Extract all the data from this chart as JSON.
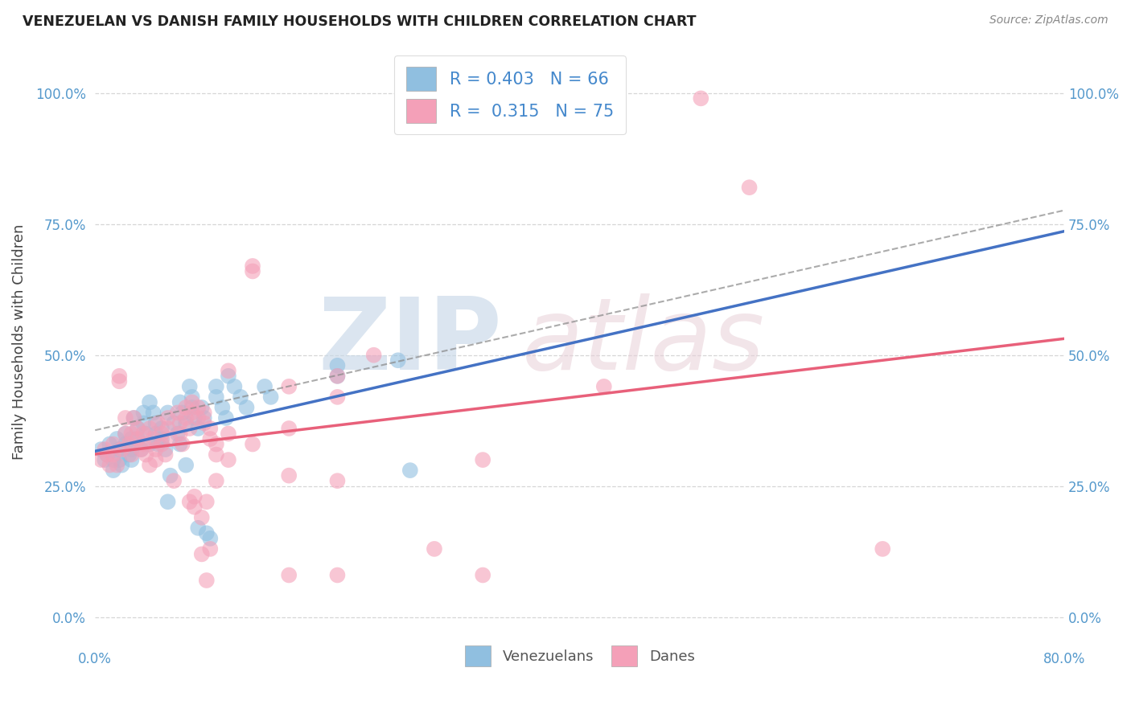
{
  "title": "VENEZUELAN VS DANISH FAMILY HOUSEHOLDS WITH CHILDREN CORRELATION CHART",
  "source": "Source: ZipAtlas.com",
  "ylabel": "Family Households with Children",
  "ytick_labels": [
    "0.0%",
    "25.0%",
    "50.0%",
    "75.0%",
    "100.0%"
  ],
  "watermark_zip": "ZIP",
  "watermark_atlas": "atlas",
  "venezuelan_color": "#90bfe0",
  "danish_color": "#f4a0b8",
  "venezuelan_line_color": "#4472c4",
  "danish_line_color": "#e8607a",
  "venezuelan_scatter": [
    [
      0.005,
      0.32
    ],
    [
      0.008,
      0.3
    ],
    [
      0.01,
      0.31
    ],
    [
      0.012,
      0.33
    ],
    [
      0.015,
      0.3
    ],
    [
      0.015,
      0.28
    ],
    [
      0.018,
      0.34
    ],
    [
      0.02,
      0.32
    ],
    [
      0.02,
      0.3
    ],
    [
      0.022,
      0.29
    ],
    [
      0.025,
      0.35
    ],
    [
      0.025,
      0.33
    ],
    [
      0.028,
      0.31
    ],
    [
      0.03,
      0.34
    ],
    [
      0.03,
      0.32
    ],
    [
      0.03,
      0.3
    ],
    [
      0.032,
      0.38
    ],
    [
      0.035,
      0.36
    ],
    [
      0.035,
      0.34
    ],
    [
      0.038,
      0.32
    ],
    [
      0.04,
      0.39
    ],
    [
      0.04,
      0.37
    ],
    [
      0.042,
      0.35
    ],
    [
      0.045,
      0.33
    ],
    [
      0.045,
      0.41
    ],
    [
      0.048,
      0.39
    ],
    [
      0.05,
      0.37
    ],
    [
      0.05,
      0.35
    ],
    [
      0.052,
      0.33
    ],
    [
      0.055,
      0.36
    ],
    [
      0.055,
      0.34
    ],
    [
      0.058,
      0.32
    ],
    [
      0.06,
      0.39
    ],
    [
      0.06,
      0.22
    ],
    [
      0.062,
      0.27
    ],
    [
      0.065,
      0.37
    ],
    [
      0.068,
      0.35
    ],
    [
      0.07,
      0.33
    ],
    [
      0.07,
      0.41
    ],
    [
      0.072,
      0.39
    ],
    [
      0.075,
      0.37
    ],
    [
      0.075,
      0.29
    ],
    [
      0.078,
      0.44
    ],
    [
      0.08,
      0.42
    ],
    [
      0.08,
      0.4
    ],
    [
      0.082,
      0.38
    ],
    [
      0.085,
      0.36
    ],
    [
      0.085,
      0.17
    ],
    [
      0.088,
      0.4
    ],
    [
      0.09,
      0.38
    ],
    [
      0.092,
      0.16
    ],
    [
      0.095,
      0.15
    ],
    [
      0.1,
      0.44
    ],
    [
      0.1,
      0.42
    ],
    [
      0.105,
      0.4
    ],
    [
      0.108,
      0.38
    ],
    [
      0.11,
      0.46
    ],
    [
      0.115,
      0.44
    ],
    [
      0.12,
      0.42
    ],
    [
      0.125,
      0.4
    ],
    [
      0.14,
      0.44
    ],
    [
      0.145,
      0.42
    ],
    [
      0.2,
      0.48
    ],
    [
      0.2,
      0.46
    ],
    [
      0.25,
      0.49
    ],
    [
      0.26,
      0.28
    ]
  ],
  "danish_scatter": [
    [
      0.005,
      0.3
    ],
    [
      0.008,
      0.32
    ],
    [
      0.01,
      0.31
    ],
    [
      0.012,
      0.29
    ],
    [
      0.015,
      0.33
    ],
    [
      0.015,
      0.31
    ],
    [
      0.018,
      0.29
    ],
    [
      0.02,
      0.46
    ],
    [
      0.02,
      0.45
    ],
    [
      0.022,
      0.32
    ],
    [
      0.025,
      0.35
    ],
    [
      0.025,
      0.38
    ],
    [
      0.028,
      0.33
    ],
    [
      0.03,
      0.31
    ],
    [
      0.03,
      0.35
    ],
    [
      0.032,
      0.38
    ],
    [
      0.035,
      0.36
    ],
    [
      0.035,
      0.34
    ],
    [
      0.038,
      0.32
    ],
    [
      0.04,
      0.35
    ],
    [
      0.04,
      0.33
    ],
    [
      0.042,
      0.31
    ],
    [
      0.045,
      0.29
    ],
    [
      0.045,
      0.36
    ],
    [
      0.048,
      0.34
    ],
    [
      0.05,
      0.32
    ],
    [
      0.05,
      0.3
    ],
    [
      0.052,
      0.37
    ],
    [
      0.055,
      0.35
    ],
    [
      0.055,
      0.33
    ],
    [
      0.058,
      0.31
    ],
    [
      0.06,
      0.38
    ],
    [
      0.06,
      0.36
    ],
    [
      0.062,
      0.34
    ],
    [
      0.065,
      0.26
    ],
    [
      0.068,
      0.39
    ],
    [
      0.07,
      0.37
    ],
    [
      0.07,
      0.35
    ],
    [
      0.072,
      0.33
    ],
    [
      0.075,
      0.4
    ],
    [
      0.075,
      0.38
    ],
    [
      0.078,
      0.36
    ],
    [
      0.078,
      0.22
    ],
    [
      0.08,
      0.41
    ],
    [
      0.08,
      0.39
    ],
    [
      0.082,
      0.23
    ],
    [
      0.082,
      0.21
    ],
    [
      0.085,
      0.4
    ],
    [
      0.085,
      0.38
    ],
    [
      0.088,
      0.19
    ],
    [
      0.088,
      0.12
    ],
    [
      0.09,
      0.39
    ],
    [
      0.09,
      0.37
    ],
    [
      0.092,
      0.22
    ],
    [
      0.092,
      0.07
    ],
    [
      0.095,
      0.36
    ],
    [
      0.095,
      0.34
    ],
    [
      0.095,
      0.13
    ],
    [
      0.1,
      0.33
    ],
    [
      0.1,
      0.31
    ],
    [
      0.1,
      0.26
    ],
    [
      0.11,
      0.47
    ],
    [
      0.11,
      0.35
    ],
    [
      0.11,
      0.3
    ],
    [
      0.13,
      0.66
    ],
    [
      0.13,
      0.67
    ],
    [
      0.13,
      0.33
    ],
    [
      0.16,
      0.44
    ],
    [
      0.16,
      0.36
    ],
    [
      0.16,
      0.27
    ],
    [
      0.16,
      0.08
    ],
    [
      0.2,
      0.46
    ],
    [
      0.2,
      0.42
    ],
    [
      0.2,
      0.26
    ],
    [
      0.2,
      0.08
    ],
    [
      0.23,
      0.5
    ],
    [
      0.28,
      0.13
    ],
    [
      0.32,
      0.3
    ],
    [
      0.32,
      0.08
    ],
    [
      0.42,
      0.44
    ],
    [
      0.5,
      0.99
    ],
    [
      0.54,
      0.82
    ],
    [
      0.65,
      0.13
    ]
  ],
  "xlim": [
    0.0,
    0.8
  ],
  "ylim": [
    -0.05,
    1.1
  ],
  "yticks": [
    0.0,
    0.25,
    0.5,
    0.75,
    1.0
  ],
  "xticks_shown": [
    0.0,
    0.8
  ],
  "background_color": "#ffffff",
  "grid_color": "#cccccc",
  "title_color": "#222222",
  "tick_color": "#5599cc"
}
